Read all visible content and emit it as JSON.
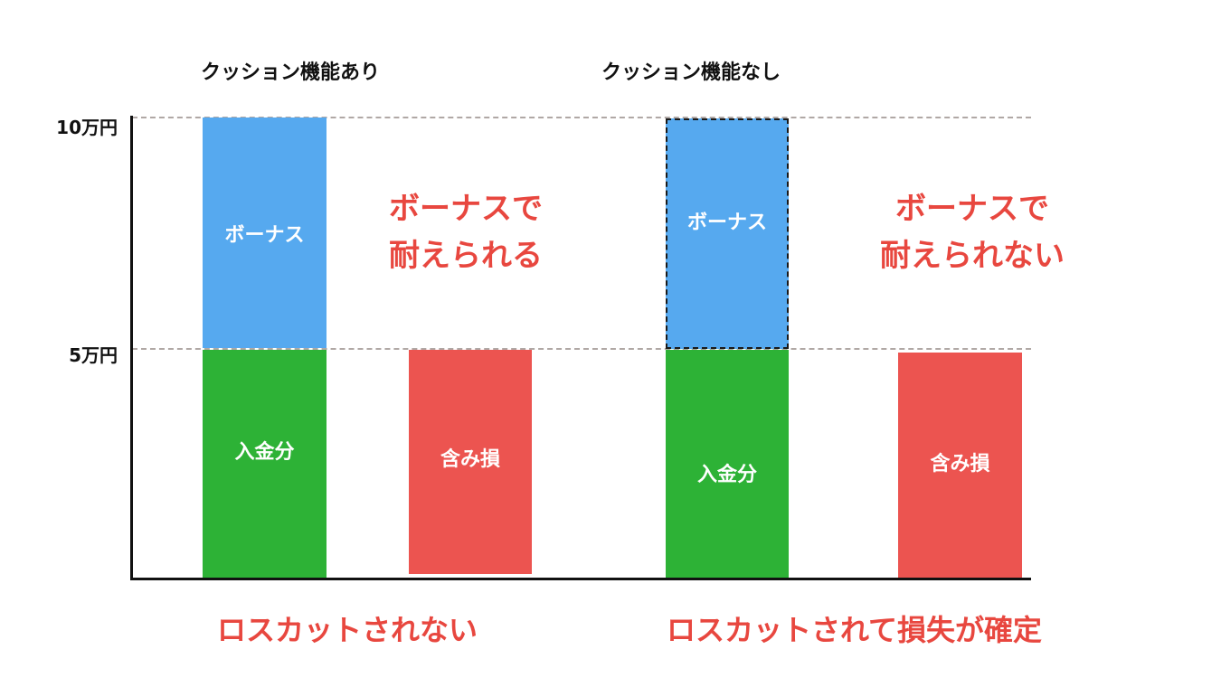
{
  "panels": {
    "left": {
      "title": "クッション機能あり",
      "callout_line1": "ボーナスで",
      "callout_line2": "耐えられる",
      "result": "ロスカットされない"
    },
    "right": {
      "title": "クッション機能なし",
      "callout_line1": "ボーナスで",
      "callout_line2": "耐えられない",
      "result": "ロスカットされて損失が確定"
    }
  },
  "axis": {
    "tick_top": "10万円",
    "tick_mid": "5万円"
  },
  "bars": {
    "bonus": "ボーナス",
    "deposit": "入金分",
    "unrealized_loss": "含み損"
  },
  "colors": {
    "bonus": "#56a9ef",
    "deposit": "#2db236",
    "loss": "#ec5450",
    "accent_text": "#e8473f",
    "gridline": "#b0a8a5"
  }
}
